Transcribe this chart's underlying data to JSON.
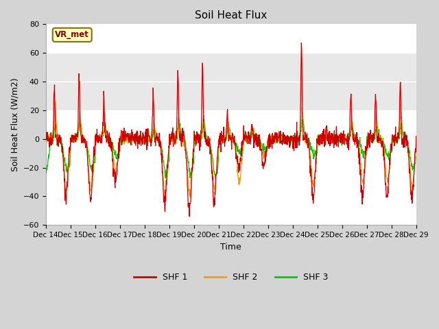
{
  "title": "Soil Heat Flux",
  "xlabel": "Time",
  "ylabel": "Soil Heat Flux (W/m2)",
  "ylim": [
    -60,
    80
  ],
  "yticks": [
    -60,
    -40,
    -20,
    0,
    20,
    40,
    60,
    80
  ],
  "x_labels": [
    "Dec 14",
    "Dec 15",
    "Dec 16",
    "Dec 17",
    "Dec 18",
    "Dec 19",
    "Dec 20",
    "Dec 21",
    "Dec 22",
    "Dec 23",
    "Dec 24",
    "Dec 25",
    "Dec 26",
    "Dec 27",
    "Dec 28",
    "Dec 29"
  ],
  "shf1_color": "#cc0000",
  "shf2_color": "#ff9900",
  "shf3_color": "#00cc00",
  "legend_labels": [
    "SHF 1",
    "SHF 2",
    "SHF 3"
  ],
  "annotation_text": "VR_met",
  "plot_bg_color": "#ffffff",
  "band_color": "#e8e8e8",
  "n_points": 1440,
  "seed": 42
}
